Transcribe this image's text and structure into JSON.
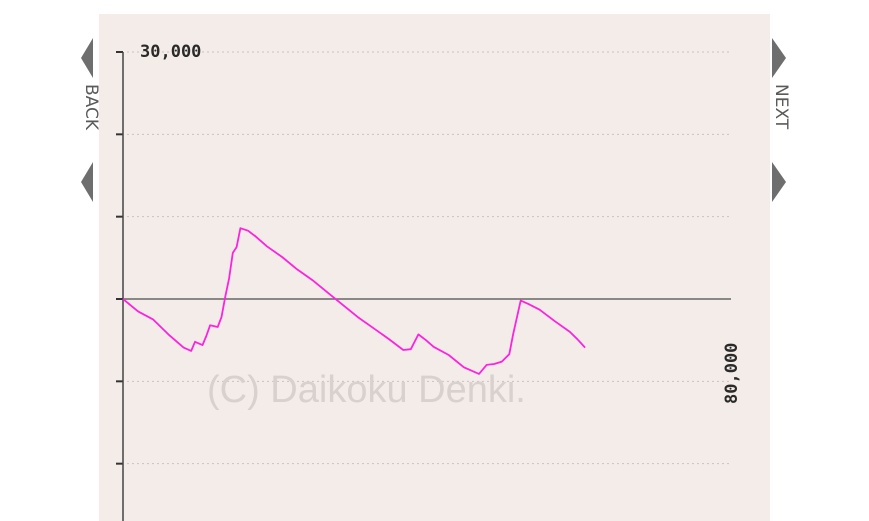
{
  "chart_data": {
    "type": "line",
    "y_top_label": "30,000",
    "x_end_label": "80,000",
    "watermark": "(C) Daikoku Denki.",
    "ylim": [
      -30000,
      30000
    ],
    "xlim": [
      0,
      80000
    ],
    "y_gridlines": [
      30000,
      20000,
      10000,
      0,
      -10000,
      -20000
    ],
    "grid": true,
    "colors": {
      "series": "#ff22dd",
      "axis": "#666666",
      "grid": "#c9c2bf",
      "panel": "#f4ece8",
      "watermark": "#d9d1ce"
    },
    "series": [
      {
        "values": [
          [
            0,
            0
          ],
          [
            2000,
            -1500
          ],
          [
            4000,
            -2500
          ],
          [
            6000,
            -4300
          ],
          [
            8000,
            -5900
          ],
          [
            9000,
            -6300
          ],
          [
            9500,
            -5200
          ],
          [
            10500,
            -5600
          ],
          [
            11000,
            -4500
          ],
          [
            11500,
            -3200
          ],
          [
            12500,
            -3400
          ],
          [
            13000,
            -2200
          ],
          [
            13500,
            300
          ],
          [
            14000,
            2500
          ],
          [
            14500,
            5600
          ],
          [
            15000,
            6300
          ],
          [
            15500,
            8600
          ],
          [
            16500,
            8300
          ],
          [
            17500,
            7600
          ],
          [
            19000,
            6400
          ],
          [
            21000,
            5100
          ],
          [
            23000,
            3600
          ],
          [
            25000,
            2300
          ],
          [
            27000,
            800
          ],
          [
            29000,
            -700
          ],
          [
            31000,
            -2200
          ],
          [
            33000,
            -3500
          ],
          [
            35000,
            -4800
          ],
          [
            37000,
            -6200
          ],
          [
            38000,
            -6100
          ],
          [
            39000,
            -4300
          ],
          [
            40000,
            -5000
          ],
          [
            41000,
            -5800
          ],
          [
            43000,
            -6800
          ],
          [
            45000,
            -8300
          ],
          [
            47000,
            -9100
          ],
          [
            48000,
            -8000
          ],
          [
            49000,
            -7900
          ],
          [
            50000,
            -7600
          ],
          [
            51000,
            -6700
          ],
          [
            51500,
            -4300
          ],
          [
            52500,
            -200
          ],
          [
            53500,
            -600
          ],
          [
            55000,
            -1300
          ],
          [
            57000,
            -2700
          ],
          [
            59000,
            -4000
          ],
          [
            60000,
            -4900
          ],
          [
            61000,
            -5900
          ]
        ]
      }
    ]
  },
  "nav": {
    "back_label": "BACK",
    "next_label": "NEXT"
  }
}
